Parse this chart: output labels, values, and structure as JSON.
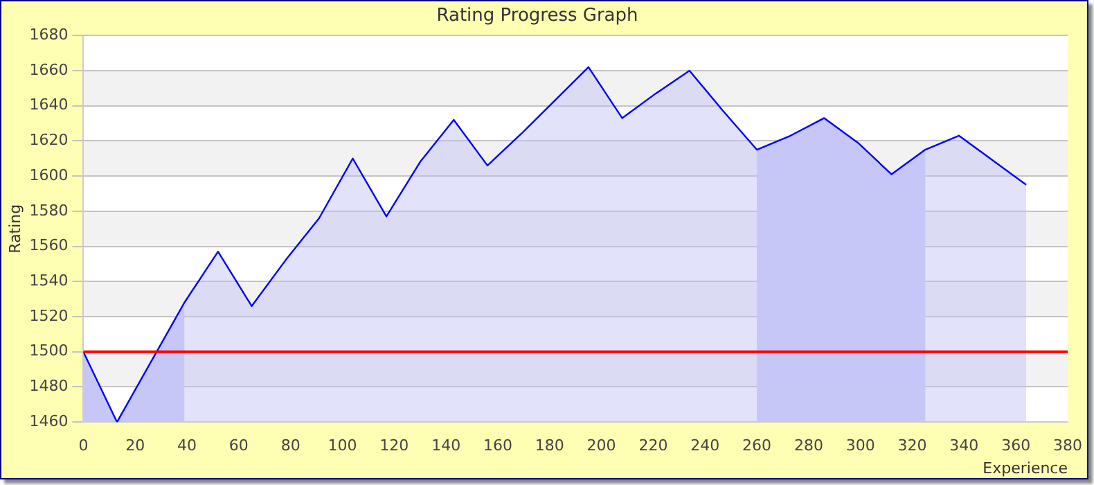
{
  "chart_data": {
    "type": "area",
    "title": "Rating Progress Graph",
    "xlabel": "Experience",
    "ylabel": "Rating",
    "x": [
      0,
      13,
      26,
      39,
      52,
      65,
      78,
      91,
      104,
      117,
      130,
      143,
      156,
      169,
      182,
      195,
      208,
      221,
      234,
      247,
      260,
      273,
      286,
      299,
      312,
      325,
      338,
      351,
      364
    ],
    "series": [
      {
        "color": "#0000ff",
        "values": [
          1500,
          1460,
          1494,
          1528,
          1557,
          1526,
          1552,
          1576,
          1610,
          1577,
          1608,
          1632,
          1606,
          1624,
          1643,
          1662,
          1633,
          1647,
          1660,
          1637,
          1615,
          1623,
          1633,
          1619,
          1601,
          1615,
          1623,
          1609,
          1595
        ]
      }
    ],
    "xlim": [
      0,
      380
    ],
    "xticks": [
      0,
      20,
      40,
      60,
      80,
      100,
      120,
      140,
      160,
      180,
      200,
      220,
      240,
      260,
      280,
      300,
      320,
      340,
      360,
      380
    ],
    "ylim": [
      1460,
      1680
    ],
    "yticks": [
      1460,
      1480,
      1500,
      1520,
      1540,
      1560,
      1580,
      1600,
      1620,
      1640,
      1660,
      1680
    ],
    "ref_lines": [
      {
        "axis": "y",
        "value": 1500,
        "color": "#ff0000"
      }
    ],
    "bands": [
      {
        "axis": "x",
        "from": 0,
        "to": 39,
        "color": "#ccccfa"
      },
      {
        "axis": "x",
        "from": 260,
        "to": 325,
        "color": "#ccccfa"
      }
    ],
    "grid": "y",
    "legend": false,
    "marker": "none",
    "line_style": "solid"
  }
}
